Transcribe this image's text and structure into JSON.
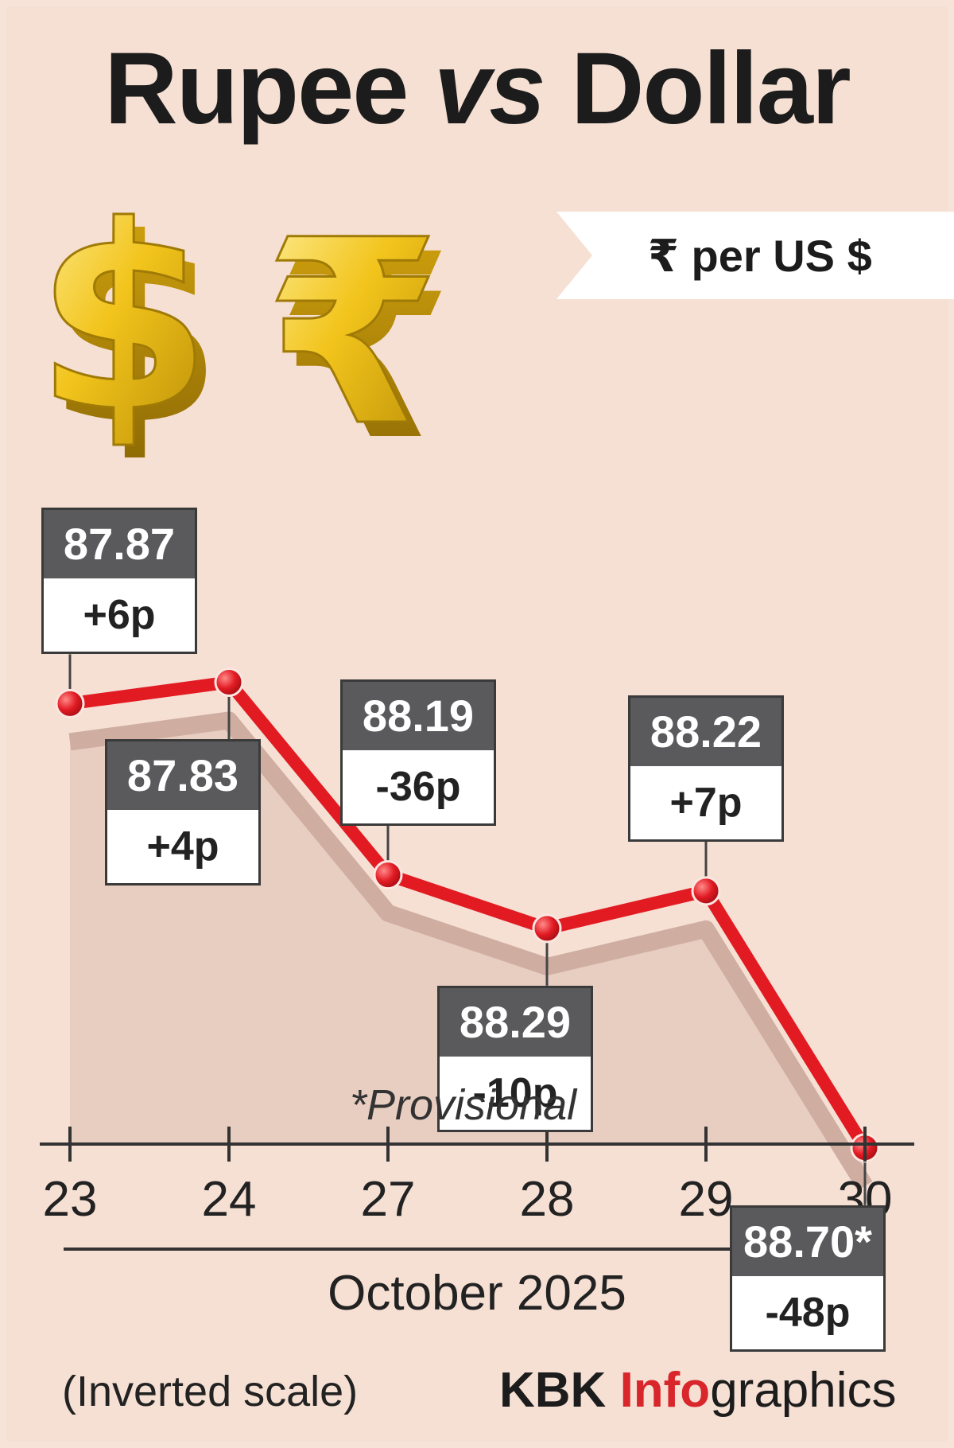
{
  "header": {
    "title_part1": "Rupee",
    "title_vs": "vs",
    "title_part2": "Dollar",
    "unit": "₹ per US $"
  },
  "chart_data": {
    "type": "line",
    "title": "Rupee vs Dollar",
    "ylabel": "₹ per US $",
    "xlabel": "October 2025",
    "inverted_y": true,
    "categories": [
      "23",
      "24",
      "27",
      "28",
      "29",
      "30"
    ],
    "values": [
      87.87,
      87.83,
      88.19,
      88.29,
      88.22,
      88.7
    ],
    "changes": [
      "+6p",
      "+4p",
      "-36p",
      "-10p",
      "+7p",
      "-48p"
    ],
    "value_labels": [
      "87.87",
      "87.83",
      "88.19",
      "88.29",
      "88.22",
      "88.70*"
    ],
    "ylim": [
      88.8,
      87.7
    ],
    "line_color": "#e21b23",
    "note": "*Provisional"
  },
  "footer": {
    "scale_note": "(Inverted scale)",
    "credit_a": "KBK ",
    "credit_b": "Info",
    "credit_c": "graphics"
  }
}
